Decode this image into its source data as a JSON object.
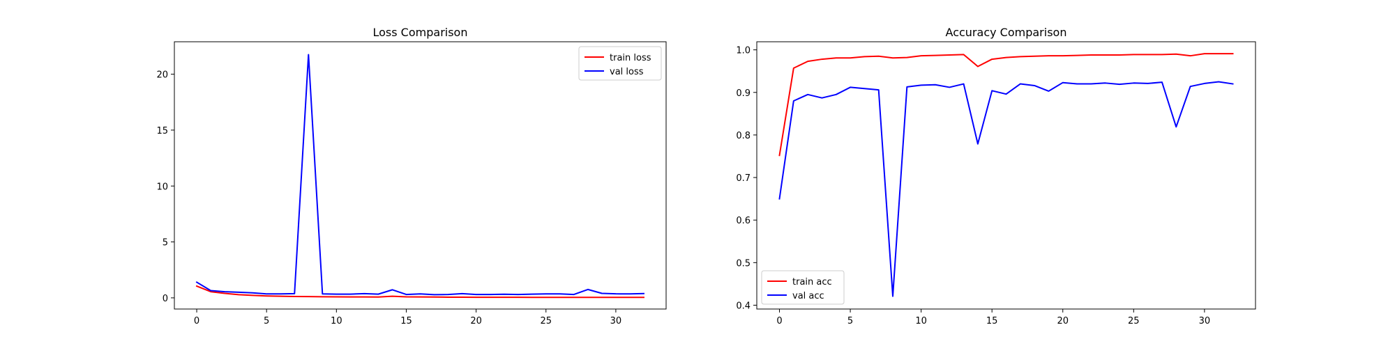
{
  "chart_data": [
    {
      "type": "line",
      "title": "Loss Comparison",
      "xlabel": "",
      "ylabel": "",
      "xlim": [
        -1.6,
        33.6
      ],
      "ylim": [
        -1.0,
        22.9
      ],
      "xticks": [
        0,
        5,
        10,
        15,
        20,
        25,
        30
      ],
      "yticks": [
        0,
        5,
        10,
        15,
        20
      ],
      "grid": false,
      "legend": "top-right",
      "series": [
        {
          "name": "train loss",
          "color": "#ff0000",
          "x": [
            0,
            1,
            2,
            3,
            4,
            5,
            6,
            7,
            8,
            9,
            10,
            11,
            12,
            13,
            14,
            15,
            16,
            17,
            18,
            19,
            20,
            21,
            22,
            23,
            24,
            25,
            26,
            27,
            28,
            29,
            30,
            31,
            32
          ],
          "values": [
            1.05,
            0.55,
            0.4,
            0.28,
            0.22,
            0.17,
            0.14,
            0.12,
            0.11,
            0.1,
            0.09,
            0.08,
            0.08,
            0.07,
            0.14,
            0.09,
            0.08,
            0.07,
            0.06,
            0.06,
            0.05,
            0.05,
            0.05,
            0.05,
            0.04,
            0.04,
            0.04,
            0.04,
            0.04,
            0.04,
            0.04,
            0.04,
            0.04
          ]
        },
        {
          "name": "val loss",
          "color": "#0000ff",
          "x": [
            0,
            1,
            2,
            3,
            4,
            5,
            6,
            7,
            8,
            9,
            10,
            11,
            12,
            13,
            14,
            15,
            16,
            17,
            18,
            19,
            20,
            21,
            22,
            23,
            24,
            25,
            26,
            27,
            28,
            29,
            30,
            31,
            32
          ],
          "values": [
            1.4,
            0.65,
            0.55,
            0.5,
            0.45,
            0.35,
            0.35,
            0.38,
            21.75,
            0.35,
            0.33,
            0.33,
            0.38,
            0.33,
            0.72,
            0.3,
            0.35,
            0.28,
            0.3,
            0.38,
            0.3,
            0.3,
            0.32,
            0.3,
            0.33,
            0.35,
            0.35,
            0.3,
            0.75,
            0.4,
            0.36,
            0.35,
            0.38
          ]
        }
      ]
    },
    {
      "type": "line",
      "title": "Accuracy Comparison",
      "xlabel": "",
      "ylabel": "",
      "xlim": [
        -1.6,
        33.6
      ],
      "ylim": [
        0.391,
        1.019
      ],
      "xticks": [
        0,
        5,
        10,
        15,
        20,
        25,
        30
      ],
      "yticks": [
        0.4,
        0.5,
        0.6,
        0.7,
        0.8,
        0.9,
        1.0
      ],
      "grid": false,
      "legend": "bottom-left",
      "series": [
        {
          "name": "train acc",
          "color": "#ff0000",
          "x": [
            0,
            1,
            2,
            3,
            4,
            5,
            6,
            7,
            8,
            9,
            10,
            11,
            12,
            13,
            14,
            15,
            16,
            17,
            18,
            19,
            20,
            21,
            22,
            23,
            24,
            25,
            26,
            27,
            28,
            29,
            30,
            31,
            32
          ],
          "values": [
            0.752,
            0.957,
            0.973,
            0.978,
            0.981,
            0.981,
            0.984,
            0.985,
            0.981,
            0.982,
            0.986,
            0.987,
            0.988,
            0.989,
            0.961,
            0.978,
            0.982,
            0.984,
            0.985,
            0.986,
            0.986,
            0.987,
            0.988,
            0.988,
            0.988,
            0.989,
            0.989,
            0.989,
            0.99,
            0.986,
            0.991,
            0.991,
            0.991
          ]
        },
        {
          "name": "val acc",
          "color": "#0000ff",
          "x": [
            0,
            1,
            2,
            3,
            4,
            5,
            6,
            7,
            8,
            9,
            10,
            11,
            12,
            13,
            14,
            15,
            16,
            17,
            18,
            19,
            20,
            21,
            22,
            23,
            24,
            25,
            26,
            27,
            28,
            29,
            30,
            31,
            32
          ],
          "values": [
            0.65,
            0.88,
            0.895,
            0.887,
            0.895,
            0.912,
            0.909,
            0.906,
            0.421,
            0.913,
            0.917,
            0.918,
            0.912,
            0.92,
            0.779,
            0.904,
            0.896,
            0.92,
            0.916,
            0.903,
            0.923,
            0.92,
            0.92,
            0.922,
            0.919,
            0.922,
            0.921,
            0.924,
            0.819,
            0.914,
            0.921,
            0.925,
            0.92
          ]
        }
      ]
    }
  ]
}
